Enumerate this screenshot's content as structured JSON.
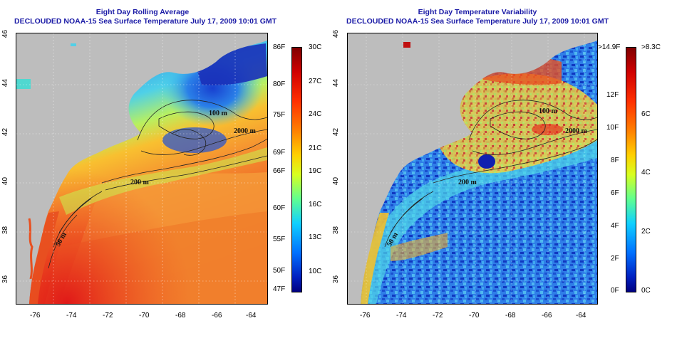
{
  "left_panel": {
    "title_line1": "Eight Day Rolling Average",
    "title_line2": "DECLOUDED NOAA-15 Sea Surface Temperature July 17, 2009 10:01 GMT",
    "colorbar_right_labels": [
      "30C",
      "27C",
      "24C",
      "21C",
      "19C",
      "16C",
      "13C",
      "10C"
    ],
    "colorbar_left_labels": [
      "86F",
      "80F",
      "75F",
      "69F",
      "66F",
      "60F",
      "55F",
      "50F",
      "47F"
    ],
    "colormap": "jet-temperature"
  },
  "right_panel": {
    "title_line1": "Eight Day Temperature Variability",
    "title_line2": "DECLOUDED NOAA-15 Sea Surface Temperature July 17, 2009 10:01 GMT",
    "colorbar_right_labels": [
      ">8.3C",
      "6C",
      "4C",
      "2C",
      "0C"
    ],
    "colorbar_left_labels": [
      ">14.9F",
      "12F",
      "10F",
      "8F",
      "6F",
      "4F",
      "2F",
      "0F"
    ],
    "colormap": "jet-variability"
  },
  "x_ticks": [
    "-76",
    "-74",
    "-72",
    "-70",
    "-68",
    "-66",
    "-64"
  ],
  "y_ticks": [
    "36",
    "38",
    "40",
    "42",
    "44",
    "46"
  ],
  "contour_labels": [
    "100 m",
    "2000 m",
    "200 m",
    "50 m"
  ],
  "colors": {
    "title": "#1a1aa6",
    "land": "#bdbdbd",
    "contour": "#222222"
  }
}
